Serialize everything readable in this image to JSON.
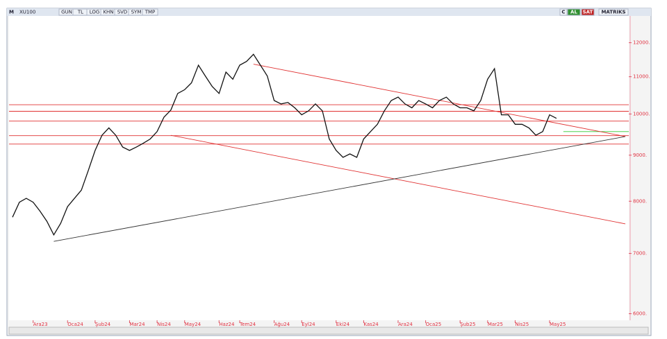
{
  "toolbar": {
    "menu": "M",
    "symbol": "XU100",
    "buttons": [
      "GUN",
      "TL",
      "LOG",
      "KHN",
      "SVD",
      "SYM",
      "TMP"
    ],
    "right_buttons": [
      "C",
      "AL",
      "SAT",
      "MATRIKS"
    ]
  },
  "chart_data": {
    "type": "line",
    "log_y": true,
    "color": "#111111",
    "categories": [
      null,
      null,
      null,
      "Ara23",
      null,
      null,
      null,
      null,
      "Oca24",
      null,
      null,
      null,
      "Şub24",
      null,
      null,
      null,
      null,
      "Mar24",
      null,
      null,
      null,
      "Nis24",
      null,
      null,
      null,
      "May24",
      null,
      null,
      null,
      null,
      "Haz24",
      null,
      null,
      "Tem24",
      null,
      null,
      null,
      null,
      "Ağu24",
      null,
      null,
      null,
      "Eyl24",
      null,
      null,
      null,
      null,
      "Eki24",
      null,
      null,
      null,
      "Kas24",
      null,
      null,
      null,
      null,
      "Ara24",
      null,
      null,
      null,
      "Oca25",
      null,
      null,
      null,
      null,
      "Şub25",
      null,
      null,
      null,
      "Mar25",
      null,
      null,
      null,
      "Nis25",
      null,
      null,
      null,
      null,
      "May25",
      null,
      null,
      null,
      null,
      null,
      null,
      null,
      null,
      null,
      null,
      null
    ],
    "values": [
      7680,
      7980,
      8060,
      7980,
      7800,
      7600,
      7340,
      7560,
      7890,
      8060,
      8230,
      8650,
      9110,
      9470,
      9650,
      9470,
      9190,
      9110,
      9190,
      9280,
      9380,
      9560,
      9920,
      10100,
      10540,
      10640,
      10830,
      11330,
      11020,
      10730,
      10540,
      11130,
      10930,
      11330,
      11440,
      11650,
      11330,
      11020,
      10350,
      10260,
      10300,
      10160,
      9980,
      10080,
      10260,
      10080,
      9380,
      9110,
      8950,
      9030,
      8950,
      9380,
      9560,
      9740,
      10080,
      10350,
      10440,
      10260,
      10160,
      10350,
      10260,
      10160,
      10350,
      10440,
      10260,
      10160,
      10160,
      10080,
      10350,
      10930,
      11230,
      9980,
      9980,
      9740,
      9740,
      9650,
      9470,
      9560,
      9980,
      9890,
      null,
      null,
      null,
      null,
      null,
      null,
      null,
      null,
      null,
      null
    ],
    "ylim": [
      5900,
      12850
    ],
    "yticks": [
      {
        "value": 6000,
        "label": "6000."
      },
      {
        "value": 7000,
        "label": "7000."
      },
      {
        "value": 8000,
        "label": "8000."
      },
      {
        "value": 9000,
        "label": "9000."
      },
      {
        "value": 10000,
        "label": "10000."
      },
      {
        "value": 11000,
        "label": "11000."
      },
      {
        "value": 12000,
        "label": "12000."
      }
    ],
    "levels": [
      {
        "value": 10240,
        "color": "#e03030"
      },
      {
        "value": 10070,
        "color": "#e03030"
      },
      {
        "value": 9820,
        "color": "#e03030"
      },
      {
        "value": 9460,
        "color": "#e03030"
      },
      {
        "value": 9260,
        "color": "#e03030"
      }
    ],
    "support": {
      "value": 9560,
      "from": 80,
      "color": "#33cc33"
    },
    "trendlines": [
      {
        "color": "#e03030",
        "from": [
          35,
          11360
        ],
        "to": [
          89,
          9440
        ]
      },
      {
        "color": "#e03030",
        "from": [
          23,
          9470
        ],
        "to": [
          89,
          7550
        ]
      },
      {
        "color": "#333333",
        "from": [
          6,
          7220
        ],
        "to": [
          89,
          9440
        ]
      }
    ]
  }
}
